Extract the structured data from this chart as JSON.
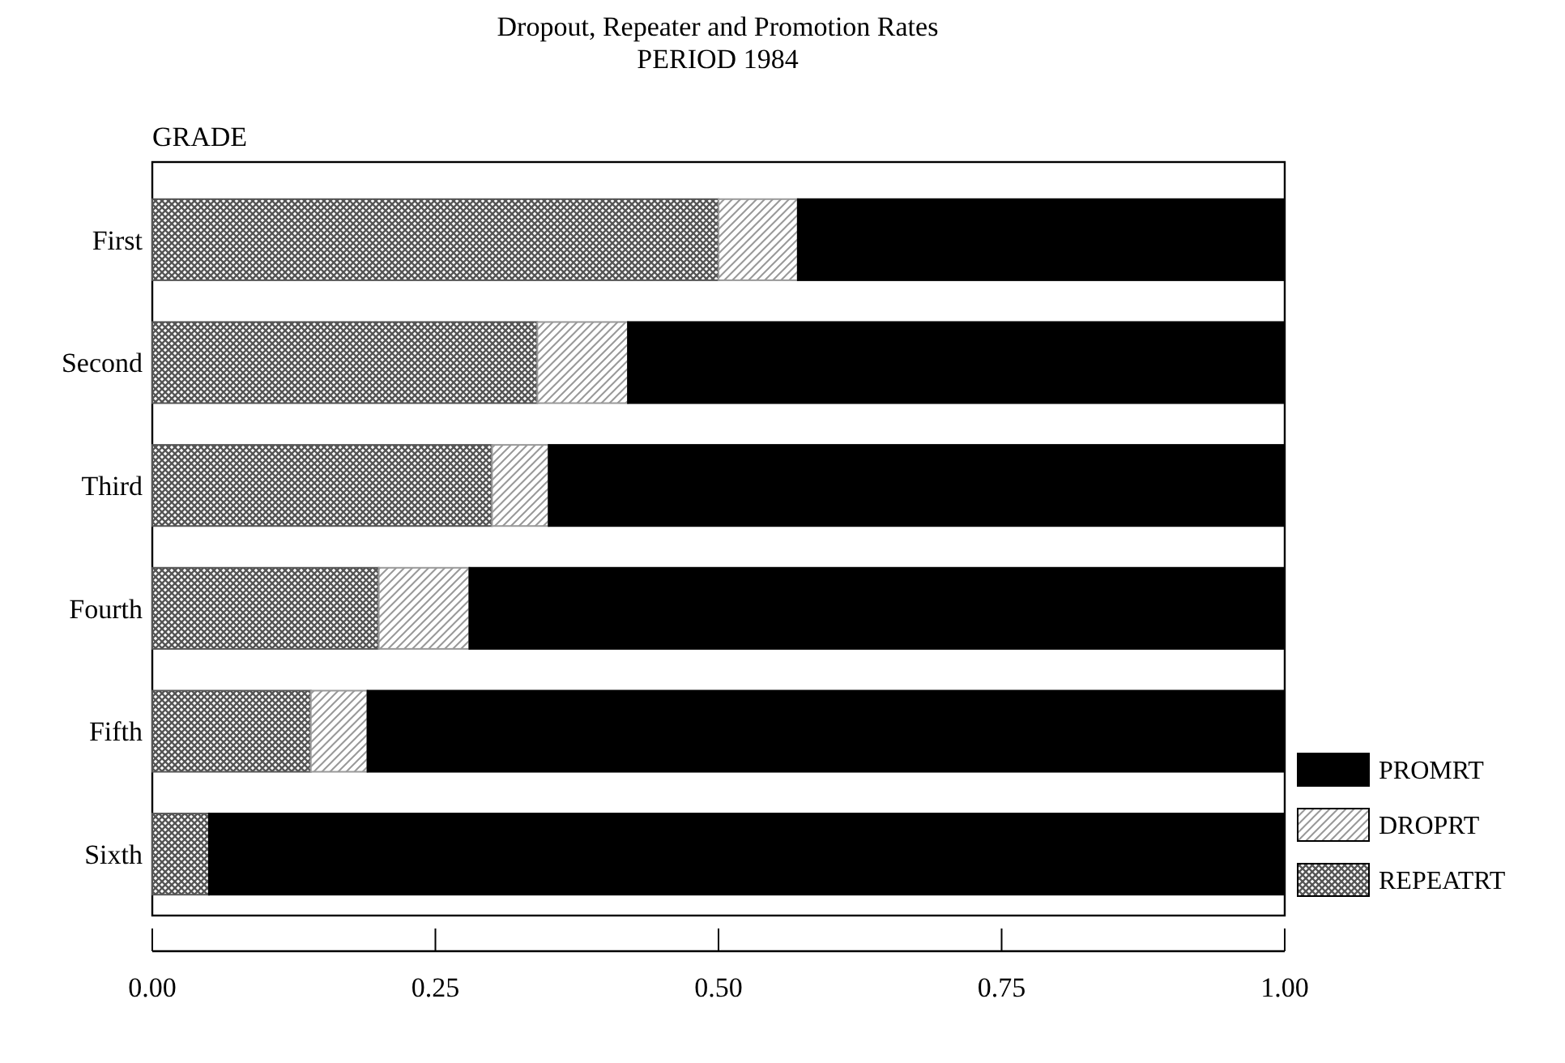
{
  "chart_data": {
    "type": "bar",
    "orientation": "horizontal",
    "stacked": true,
    "title": "Dropout, Repeater and Promotion Rates",
    "subtitle": "PERIOD 1984",
    "ylabel": "GRADE",
    "categories": [
      "First",
      "Second",
      "Third",
      "Fourth",
      "Fifth",
      "Sixth"
    ],
    "series": [
      {
        "name": "REPEATRT",
        "color": "#555555",
        "values": [
          0.5,
          0.34,
          0.3,
          0.2,
          0.14,
          0.05
        ]
      },
      {
        "name": "DROPRT",
        "color": "#999999",
        "values": [
          0.07,
          0.08,
          0.05,
          0.08,
          0.05,
          0
        ]
      },
      {
        "name": "PROMRT",
        "color": "#000000",
        "values": [
          0.43,
          0.58,
          0.65,
          0.72,
          0.81,
          0.95
        ]
      }
    ],
    "xlim": [
      0,
      1
    ],
    "xticks": [
      {
        "value": 0,
        "label": "0.00"
      },
      {
        "value": 0.25,
        "label": "0.25"
      },
      {
        "value": 0.5,
        "label": "0.50"
      },
      {
        "value": 0.75,
        "label": "0.75"
      },
      {
        "value": 1,
        "label": "1.00"
      }
    ],
    "legend": "bottom right",
    "grid": false
  }
}
